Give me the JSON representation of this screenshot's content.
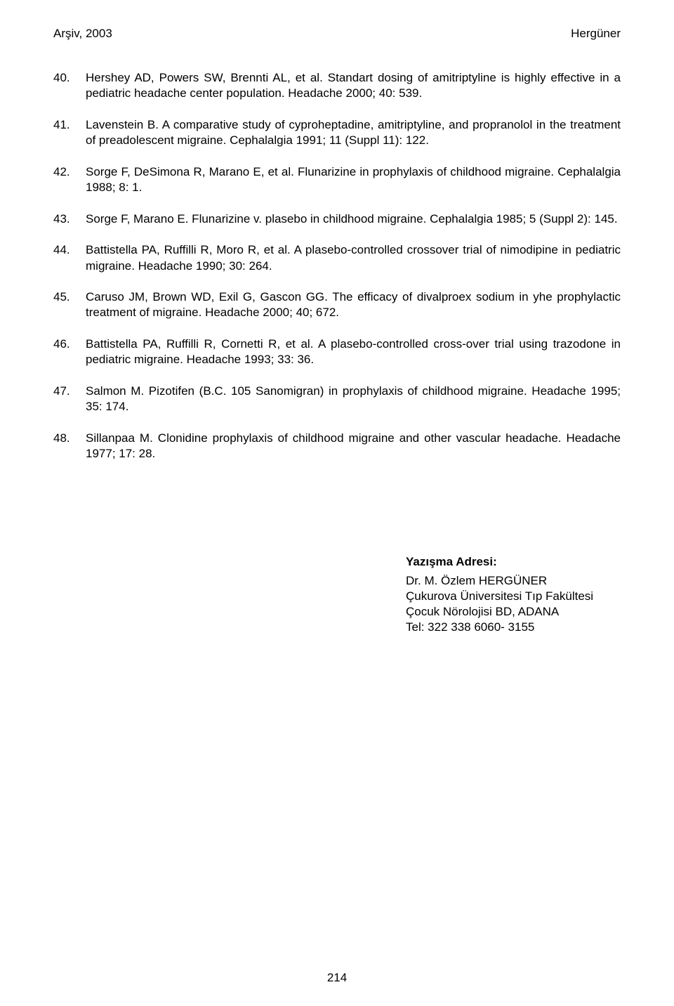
{
  "header": {
    "left": "Arşiv, 2003",
    "right": "Hergüner"
  },
  "references": [
    {
      "num": "40.",
      "text": "Hershey AD, Powers SW, Brennti AL, et al. Standart dosing of amitriptyline is highly effective in a pediatric headache center population. Headache 2000; 40: 539."
    },
    {
      "num": "41.",
      "text": "Lavenstein B. A comparative study of cyproheptadine, amitriptyline, and propranolol in the treatment of preadolescent migraine. Cephalalgia 1991; 11 (Suppl 11): 122."
    },
    {
      "num": "42.",
      "text": "Sorge F, DeSimona R, Marano E, et al. Flunarizine in prophylaxis of childhood migraine. Cephalalgia 1988; 8: 1."
    },
    {
      "num": "43.",
      "text": "Sorge F, Marano E. Flunarizine v. plasebo in childhood migraine. Cephalalgia 1985; 5 (Suppl 2): 145."
    },
    {
      "num": "44.",
      "text": "Battistella PA, Ruffilli R, Moro R, et al. A plasebo-controlled crossover trial of nimodipine in pediatric migraine. Headache 1990; 30: 264."
    },
    {
      "num": "45.",
      "text": "Caruso JM, Brown WD, Exil G, Gascon GG. The efficacy of divalproex sodium in yhe prophylactic treatment of migraine. Headache 2000; 40; 672."
    },
    {
      "num": "46.",
      "text": "Battistella PA, Ruffilli R, Cornetti R, et al. A plasebo-controlled cross-over trial using trazodone in pediatric migraine. Headache 1993; 33: 36."
    },
    {
      "num": "47.",
      "text": "Salmon M. Pizotifen (B.C. 105 Sanomigran) in prophylaxis of childhood migraine. Headache 1995; 35: 174."
    },
    {
      "num": "48.",
      "text": "Sillanpaa M. Clonidine prophylaxis of childhood migraine and other vascular headache. Headache 1977; 17: 28."
    }
  ],
  "address": {
    "title": "Yazışma Adresi:",
    "line1": "Dr. M. Özlem HERGÜNER",
    "line2": "Çukurova Üniversitesi Tıp Fakültesi",
    "line3": "Çocuk Nörolojisi BD,  ADANA",
    "line4": "Tel: 322 338 6060- 3155"
  },
  "page_number": "214"
}
